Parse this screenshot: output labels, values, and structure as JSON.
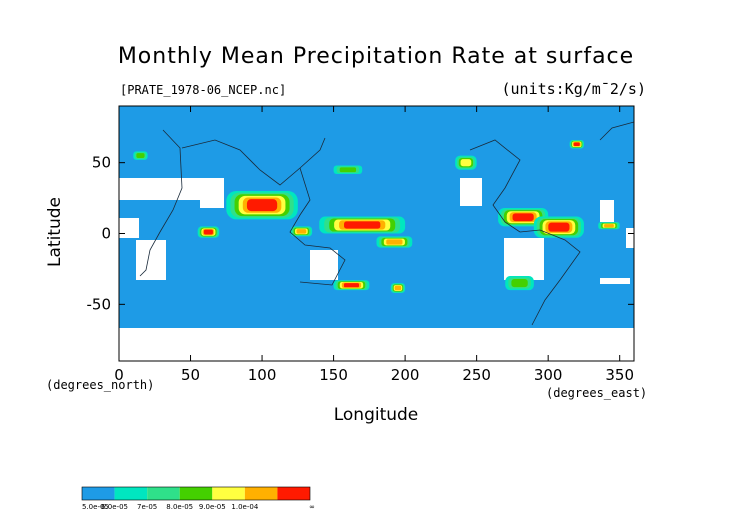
{
  "title": "Monthly Mean Precipitation Rate at surface",
  "file_label": "[PRATE_1978-06_NCEP.nc]",
  "units_label": "(units:Kg/m¯2/s)",
  "x_axis_title": "Longitude",
  "y_axis_title": "Latitude",
  "x_unit_note": "(degrees_east)",
  "y_unit_note": "(degrees_north)",
  "colors": {
    "ocean_base": "#1e9be6",
    "land_missing": "#ffffff",
    "coast": "#1a2a3a"
  },
  "chart_data": {
    "type": "heatmap",
    "title": "Monthly Mean Precipitation Rate at surface",
    "xlabel": "Longitude",
    "ylabel": "Latitude",
    "xlim": [
      0,
      360
    ],
    "ylim": [
      -90,
      90
    ],
    "x_ticks": [
      0,
      50,
      100,
      150,
      200,
      250,
      300,
      350
    ],
    "y_ticks": [
      -50,
      0,
      50
    ],
    "legend": {
      "placement": "bottom-left",
      "bins": [
        {
          "label": "5.0e-05",
          "color": "#1e9be6"
        },
        {
          "label": "6.0e-05",
          "color": "#00e6c0"
        },
        {
          "label": "7e-05",
          "color": "#2fe08a"
        },
        {
          "label": "8.0e-05",
          "color": "#44d000"
        },
        {
          "label": "9.0e-05",
          "color": "#ffff40"
        },
        {
          "label": "1.0e-04",
          "color": "#ffb000"
        },
        {
          "label": "∞",
          "color": "#ff1a00"
        }
      ]
    },
    "regions": [
      {
        "lon": [
          75,
          125
        ],
        "lat": [
          10,
          30
        ],
        "level": 6
      },
      {
        "lon": [
          140,
          200
        ],
        "lat": [
          0,
          12
        ],
        "level": 6
      },
      {
        "lon": [
          180,
          205
        ],
        "lat": [
          -10,
          -2
        ],
        "level": 5
      },
      {
        "lon": [
          150,
          175
        ],
        "lat": [
          -40,
          -33
        ],
        "level": 6
      },
      {
        "lon": [
          265,
          300
        ],
        "lat": [
          5,
          18
        ],
        "level": 6
      },
      {
        "lon": [
          290,
          325
        ],
        "lat": [
          -3,
          12
        ],
        "level": 6
      },
      {
        "lon": [
          55,
          70
        ],
        "lat": [
          -3,
          5
        ],
        "level": 6
      },
      {
        "lon": [
          120,
          135
        ],
        "lat": [
          -2,
          5
        ],
        "level": 5
      },
      {
        "lon": [
          235,
          250
        ],
        "lat": [
          45,
          55
        ],
        "level": 4
      },
      {
        "lon": [
          315,
          325
        ],
        "lat": [
          60,
          66
        ],
        "level": 6
      },
      {
        "lon": [
          270,
          290
        ],
        "lat": [
          -40,
          -30
        ],
        "level": 3
      },
      {
        "lon": [
          190,
          200
        ],
        "lat": [
          -42,
          -35
        ],
        "level": 5
      },
      {
        "lon": [
          10,
          20
        ],
        "lat": [
          52,
          58
        ],
        "level": 3
      },
      {
        "lon": [
          150,
          170
        ],
        "lat": [
          42,
          48
        ],
        "level": 3
      },
      {
        "lon": [
          335,
          350
        ],
        "lat": [
          3,
          8
        ],
        "level": 5
      }
    ]
  }
}
